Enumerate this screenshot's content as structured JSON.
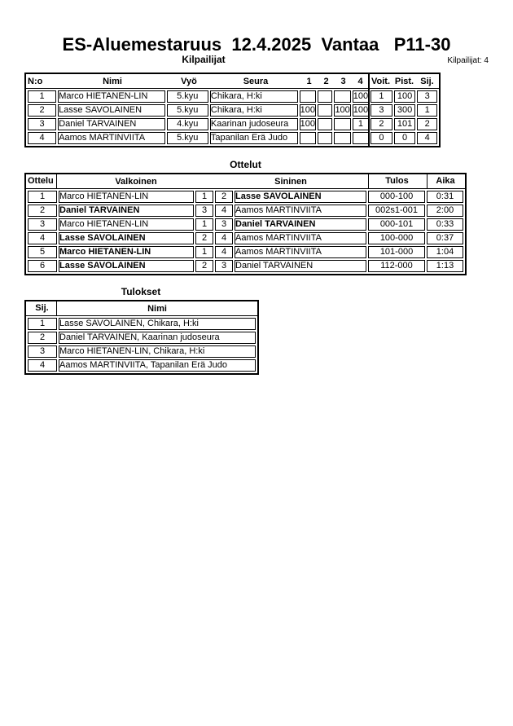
{
  "page": {
    "title": "ES-Aluemestaruus  12.4.2025  Vantaa   P11-30",
    "competitors_count": "Kilpailijat: 4"
  },
  "kilpailijat": {
    "section_title": "Kilpailijat",
    "headers": {
      "no": "N:o",
      "nimi": "Nimi",
      "vyo": "Vyö",
      "seura": "Seura",
      "r1": "1",
      "r2": "2",
      "r3": "3",
      "r4": "4",
      "voit": "Voit.",
      "pist": "Pist.",
      "sij": "Sij."
    },
    "rows": [
      {
        "no": "1",
        "nimi": "Marco HIETANEN-LIN",
        "vyo": "5.kyu",
        "seura": "Chikara, H:ki",
        "r1": "",
        "r2": "",
        "r3": "",
        "r4": "100",
        "voit": "1",
        "pist": "100",
        "sij": "3"
      },
      {
        "no": "2",
        "nimi": "Lasse SAVOLAINEN",
        "vyo": "5.kyu",
        "seura": "Chikara, H:ki",
        "r1": "100",
        "r2": "",
        "r3": "100",
        "r4": "100",
        "voit": "3",
        "pist": "300",
        "sij": "1"
      },
      {
        "no": "3",
        "nimi": "Daniel TARVAINEN",
        "vyo": "4.kyu",
        "seura": "Kaarinan judoseura",
        "r1": "100",
        "r2": "",
        "r3": "",
        "r4": "1",
        "voit": "2",
        "pist": "101",
        "sij": "2"
      },
      {
        "no": "4",
        "nimi": "Aamos MARTINVIITA",
        "vyo": "5.kyu",
        "seura": "Tapanilan Erä Judo",
        "r1": "",
        "r2": "",
        "r3": "",
        "r4": "",
        "voit": "0",
        "pist": "0",
        "sij": "4"
      }
    ]
  },
  "ottelut": {
    "section_title": "Ottelut",
    "headers": {
      "ottelu": "Ottelu",
      "valkoinen": "Valkoinen",
      "sininen": "Sininen",
      "tulos": "Tulos",
      "aika": "Aika"
    },
    "rows": [
      {
        "ottelu": "1",
        "valkoinen": "Marco HIETANEN-LIN",
        "valkoinen_winner": false,
        "vnum": "1",
        "snum": "2",
        "sininen": "Lasse SAVOLAINEN",
        "sininen_winner": true,
        "tulos": "000-100",
        "aika": "0:31"
      },
      {
        "ottelu": "2",
        "valkoinen": "Daniel TARVAINEN",
        "valkoinen_winner": true,
        "vnum": "3",
        "snum": "4",
        "sininen": "Aamos MARTINVIITA",
        "sininen_winner": false,
        "tulos": "002s1-001",
        "aika": "2:00"
      },
      {
        "ottelu": "3",
        "valkoinen": "Marco HIETANEN-LIN",
        "valkoinen_winner": false,
        "vnum": "1",
        "snum": "3",
        "sininen": "Daniel TARVAINEN",
        "sininen_winner": true,
        "tulos": "000-101",
        "aika": "0:33"
      },
      {
        "ottelu": "4",
        "valkoinen": "Lasse SAVOLAINEN",
        "valkoinen_winner": true,
        "vnum": "2",
        "snum": "4",
        "sininen": "Aamos MARTINVIITA",
        "sininen_winner": false,
        "tulos": "100-000",
        "aika": "0:37"
      },
      {
        "ottelu": "5",
        "valkoinen": "Marco HIETANEN-LIN",
        "valkoinen_winner": true,
        "vnum": "1",
        "snum": "4",
        "sininen": "Aamos MARTINVIITA",
        "sininen_winner": false,
        "tulos": "101-000",
        "aika": "1:04"
      },
      {
        "ottelu": "6",
        "valkoinen": "Lasse SAVOLAINEN",
        "valkoinen_winner": true,
        "vnum": "2",
        "snum": "3",
        "sininen": "Daniel TARVAINEN",
        "sininen_winner": false,
        "tulos": "112-000",
        "aika": "1:13"
      }
    ]
  },
  "tulokset": {
    "section_title": "Tulokset",
    "headers": {
      "sij": "Sij.",
      "nimi": "Nimi"
    },
    "rows": [
      {
        "sij": "1",
        "nimi": "Lasse SAVOLAINEN, Chikara, H:ki"
      },
      {
        "sij": "2",
        "nimi": "Daniel TARVAINEN, Kaarinan judoseura"
      },
      {
        "sij": "3",
        "nimi": "Marco HIETANEN-LIN, Chikara, H:ki"
      },
      {
        "sij": "4",
        "nimi": "Aamos MARTINVIITA, Tapanilan Erä Judo"
      }
    ]
  }
}
